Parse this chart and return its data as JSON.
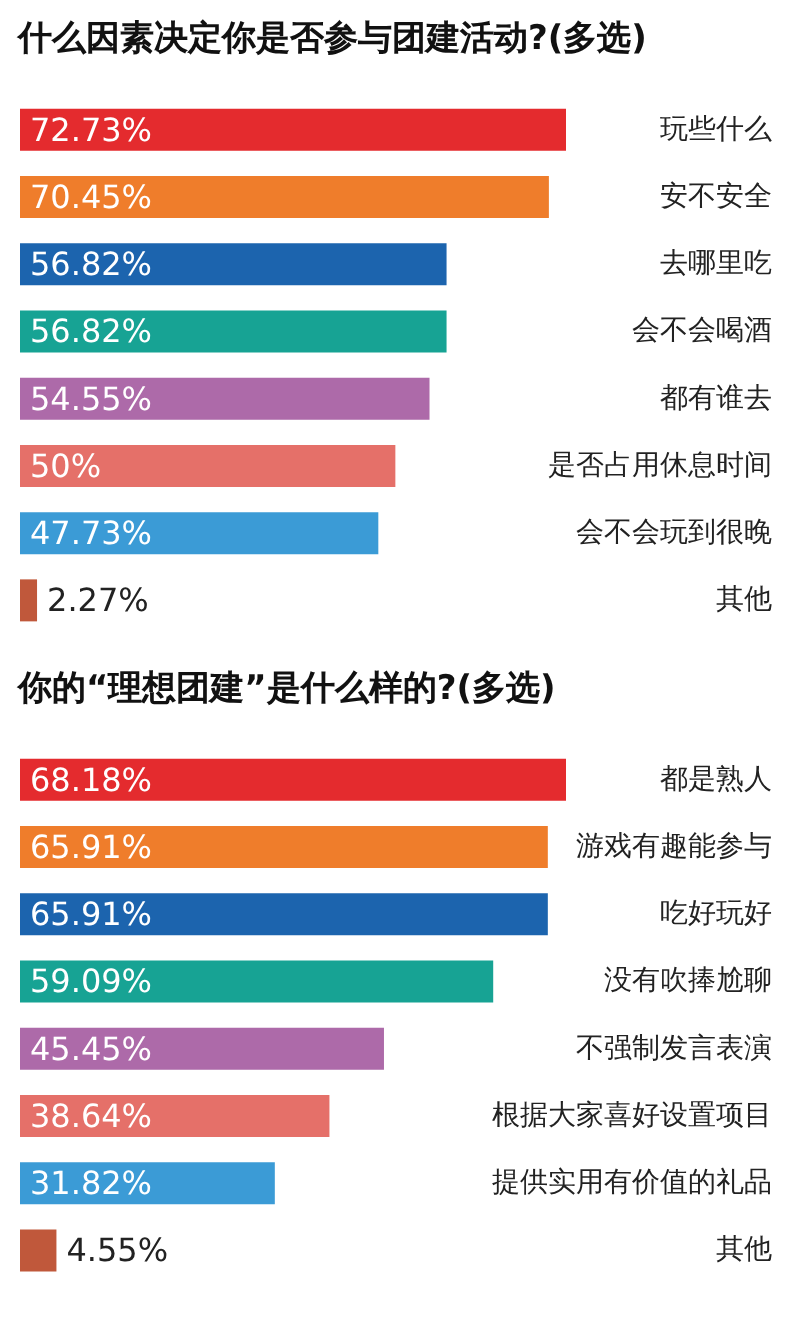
{
  "chart_data": [
    {
      "type": "bar",
      "orientation": "horizontal",
      "title": "什么因素决定你是否参与团建活动?(多选)",
      "categories": [
        "玩些什么",
        "安不安全",
        "去哪里吃",
        "会不会喝酒",
        "都有谁去",
        "是否占用休息时间",
        "会不会玩到很晚",
        "其他"
      ],
      "values": [
        72.73,
        70.45,
        56.82,
        56.82,
        54.55,
        50,
        47.73,
        2.27
      ],
      "value_labels": [
        "72.73%",
        "70.45%",
        "56.82%",
        "56.82%",
        "54.55%",
        "50%",
        "47.73%",
        "2.27%"
      ],
      "colors": [
        "#e42b2e",
        "#ef7d2b",
        "#1c64ae",
        "#17a394",
        "#ad6aa9",
        "#e57069",
        "#3b9bd6",
        "#c0583b"
      ],
      "tick_labels": "y"
    },
    {
      "type": "bar",
      "orientation": "horizontal",
      "title": "你的“理想团建”是什么样的?(多选)",
      "categories": [
        "都是熟人",
        "游戏有趣能参与",
        "吃好玩好",
        "没有吹捧尬聊",
        "不强制发言表演",
        "根据大家喜好设置项目",
        "提供实用有价值的礼品",
        "其他"
      ],
      "values": [
        68.18,
        65.91,
        65.91,
        59.09,
        45.45,
        38.64,
        31.82,
        4.55
      ],
      "value_labels": [
        "68.18%",
        "65.91%",
        "65.91%",
        "59.09%",
        "45.45%",
        "38.64%",
        "31.82%",
        "4.55%"
      ],
      "colors": [
        "#e42b2e",
        "#ef7d2b",
        "#1c64ae",
        "#17a394",
        "#ad6aa9",
        "#e57069",
        "#3b9bd6",
        "#c0583b"
      ],
      "tick_labels": "y"
    }
  ]
}
